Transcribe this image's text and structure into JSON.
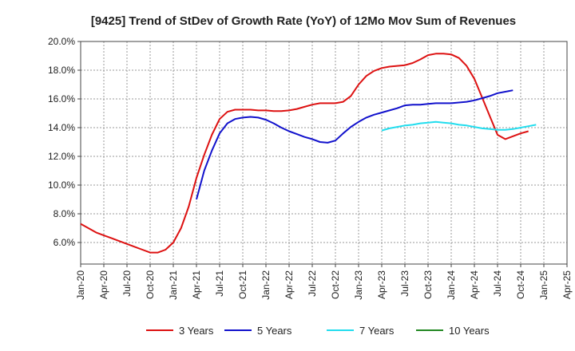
{
  "chart_data": {
    "type": "line",
    "title": "[9425]  Trend of StDev of Growth Rate (YoY) of 12Mo Mov Sum of Revenues",
    "xlabel": "",
    "ylabel": "",
    "ylim": [
      4.5,
      20.0
    ],
    "yticks": [
      6.0,
      8.0,
      10.0,
      12.0,
      14.0,
      16.0,
      18.0,
      20.0
    ],
    "ytick_labels": [
      "6.0%",
      "8.0%",
      "10.0%",
      "12.0%",
      "14.0%",
      "16.0%",
      "18.0%",
      "20.0%"
    ],
    "xlim": [
      0,
      63
    ],
    "xticks": [
      0,
      3,
      6,
      9,
      12,
      15,
      18,
      21,
      24,
      27,
      30,
      33,
      36,
      39,
      42,
      45,
      48,
      51,
      54,
      57,
      60,
      63
    ],
    "xtick_labels": [
      "Jan-20",
      "Apr-20",
      "Jul-20",
      "Oct-20",
      "Jan-21",
      "Apr-21",
      "Jul-21",
      "Oct-21",
      "Jan-22",
      "Apr-22",
      "Jul-22",
      "Oct-22",
      "Jan-23",
      "Apr-23",
      "Jul-23",
      "Oct-23",
      "Jan-24",
      "Apr-24",
      "Jul-24",
      "Oct-24",
      "Jan-25",
      "Apr-25"
    ],
    "grid": true,
    "legend_position": "bottom",
    "series": [
      {
        "name": "3 Years",
        "color": "#dd1111",
        "x_start": 0,
        "values": [
          7.3,
          7.0,
          6.7,
          6.5,
          6.3,
          6.1,
          5.9,
          5.7,
          5.5,
          5.3,
          5.3,
          5.5,
          6.0,
          7.0,
          8.5,
          10.5,
          12.1,
          13.5,
          14.6,
          15.1,
          15.25,
          15.25,
          15.25,
          15.2,
          15.2,
          15.15,
          15.15,
          15.2,
          15.3,
          15.45,
          15.6,
          15.7,
          15.7,
          15.7,
          15.8,
          16.2,
          17.0,
          17.6,
          17.95,
          18.15,
          18.25,
          18.3,
          18.35,
          18.5,
          18.75,
          19.05,
          19.15,
          19.15,
          19.1,
          18.85,
          18.3,
          17.4,
          16.1,
          14.8,
          13.5,
          13.2,
          13.4,
          13.6,
          13.75
        ]
      },
      {
        "name": "5 Years",
        "color": "#1111cc",
        "x_start": 15,
        "values": [
          9.0,
          11.0,
          12.4,
          13.6,
          14.3,
          14.6,
          14.7,
          14.75,
          14.7,
          14.55,
          14.3,
          14.0,
          13.75,
          13.55,
          13.35,
          13.2,
          13.0,
          12.95,
          13.1,
          13.6,
          14.05,
          14.4,
          14.7,
          14.9,
          15.05,
          15.2,
          15.35,
          15.55,
          15.6,
          15.6,
          15.65,
          15.7,
          15.7,
          15.7,
          15.75,
          15.8,
          15.9,
          16.05,
          16.2,
          16.4,
          16.5,
          16.6
        ]
      },
      {
        "name": "7 Years",
        "color": "#22ddee",
        "x_start": 39,
        "values": [
          13.8,
          13.95,
          14.05,
          14.15,
          14.2,
          14.3,
          14.35,
          14.4,
          14.35,
          14.3,
          14.2,
          14.15,
          14.05,
          13.95,
          13.9,
          13.85,
          13.85,
          13.9,
          14.0,
          14.1,
          14.2
        ]
      },
      {
        "name": "10 Years",
        "color": "#228822",
        "x_start": null,
        "values": []
      }
    ]
  }
}
